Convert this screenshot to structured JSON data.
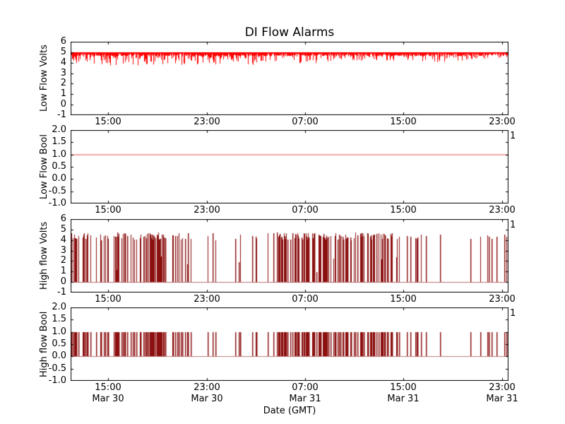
{
  "title": "DI Flow Alarms",
  "xlabel": "Date (GMT)",
  "axis_color": "#000000",
  "xticks": {
    "fracs": [
      0.0855,
      0.3113,
      0.5355,
      0.7597,
      0.9855
    ],
    "times": [
      "15:00",
      "23:00",
      "07:00",
      "15:00",
      "23:00"
    ],
    "dates": [
      "Mar 30",
      "Mar 30",
      "Mar 31",
      "Mar 31",
      "Mar 31"
    ]
  },
  "chart_data": [
    {
      "type": "line",
      "name": "low-flow-volts",
      "ylabel": "Low Flow Volts",
      "ylim": [
        -1,
        6
      ],
      "yticks": [
        "6",
        "5",
        "4",
        "3",
        "2",
        "1",
        "0",
        "-1"
      ],
      "color": "#ff0000",
      "baseline_value": 5.0,
      "noise_band": [
        0.12,
        0.38
      ],
      "spike_segments": [
        [
          0.0,
          0.45,
          0.55,
          0.95
        ],
        [
          0.45,
          0.62,
          0.45,
          0.75
        ],
        [
          0.62,
          0.78,
          0.3,
          0.5
        ],
        [
          0.78,
          0.93,
          0.4,
          0.65
        ],
        [
          0.93,
          1.0,
          0.25,
          0.4
        ]
      ],
      "seed": 11
    },
    {
      "type": "line",
      "name": "low-flow-bool",
      "ylabel": "Low Flow Bool",
      "ylim": [
        -1,
        2
      ],
      "yticks": [
        "2.0",
        "1.5",
        "1.0",
        "0.5",
        "0.0",
        "-0.5",
        "-1.0"
      ],
      "color": "#f7a6a6",
      "constant_value": 1.0,
      "legend": "1"
    },
    {
      "type": "line",
      "name": "high-flow-volts",
      "ylabel": "High flow Volts",
      "ylim": [
        -1,
        6
      ],
      "yticks": [
        "6",
        "5",
        "4",
        "3",
        "2",
        "1",
        "0",
        "-1"
      ],
      "color": "#8b0f0f",
      "baseline_value": 0.0,
      "event_segments": [
        [
          0.0,
          0.21,
          0.5
        ],
        [
          0.21,
          0.27,
          0.32
        ],
        [
          0.27,
          0.34,
          0.13
        ],
        [
          0.34,
          0.365,
          0.04
        ],
        [
          0.365,
          0.425,
          0.12
        ],
        [
          0.425,
          0.47,
          0.3
        ],
        [
          0.47,
          0.7,
          0.5
        ],
        [
          0.7,
          0.77,
          0.38
        ],
        [
          0.77,
          0.805,
          0.18
        ],
        [
          0.805,
          0.86,
          0.08
        ],
        [
          0.86,
          0.9,
          0.05
        ],
        [
          0.9,
          0.965,
          0.07
        ],
        [
          0.965,
          1.0,
          0.05
        ]
      ],
      "extra_event_fracs": [
        0.995
      ],
      "spike_height": [
        4.0,
        4.7
      ],
      "short_spike": {
        "prob": 0.05,
        "height": [
          0.9,
          2.5
        ]
      },
      "legend": "1",
      "seed": 7
    },
    {
      "type": "line",
      "name": "high-flow-bool",
      "ylabel": "High flow Bool",
      "ylim": [
        -1,
        2
      ],
      "yticks": [
        "2.0",
        "1.5",
        "1.0",
        "0.5",
        "0.0",
        "-0.5",
        "-1.0"
      ],
      "color": "#8b0f0f",
      "baseline_value": 0.0,
      "bool_spike_height": 1.0,
      "shares_events_with": "high-flow-volts",
      "legend": "1"
    }
  ]
}
